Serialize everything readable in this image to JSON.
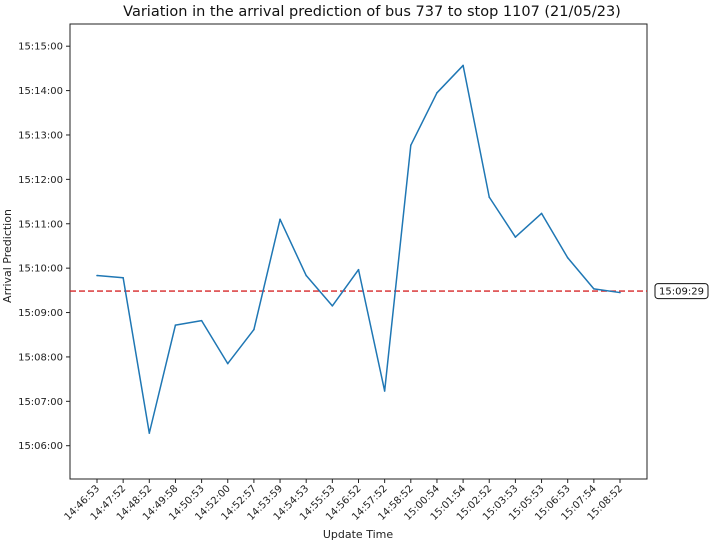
{
  "chart_data": {
    "type": "line",
    "title": "Variation in the arrival prediction of bus 737 to stop 1107 (21/05/23)",
    "xlabel": "Update Time",
    "ylabel": "Arrival Prediction",
    "categories": [
      "14:46:53",
      "14:47:52",
      "14:48:52",
      "14:49:58",
      "14:50:53",
      "14:52:00",
      "14:52:57",
      "14:53:59",
      "14:54:53",
      "14:55:53",
      "14:56:52",
      "14:57:52",
      "14:58:52",
      "15:00:54",
      "15:01:54",
      "15:02:52",
      "15:03:53",
      "15:05:53",
      "15:06:53",
      "15:07:54",
      "15:08:52"
    ],
    "series": [
      {
        "values": [
          "15:09:50",
          "15:09:47",
          "15:06:17",
          "15:08:43",
          "15:08:49",
          "15:07:51",
          "15:08:37",
          "15:11:06",
          "15:09:50",
          "15:09:09",
          "15:09:58",
          "15:07:14",
          "15:12:46",
          "15:13:57",
          "15:14:34",
          "15:11:36",
          "15:10:42",
          "15:11:14",
          "15:10:14",
          "15:09:32",
          "15:09:27"
        ],
        "color": "#1f77b4"
      }
    ],
    "y_ticks": [
      "15:06:00",
      "15:07:00",
      "15:08:00",
      "15:09:00",
      "15:10:00",
      "15:11:00",
      "15:12:00",
      "15:13:00",
      "15:14:00",
      "15:15:00"
    ],
    "ylim": [
      "15:05:15",
      "15:15:30"
    ],
    "reference_line": {
      "value": "15:09:29",
      "label": "15:09:29",
      "color": "#d62728",
      "style": "dashed"
    },
    "grid": false,
    "legend": "none"
  }
}
